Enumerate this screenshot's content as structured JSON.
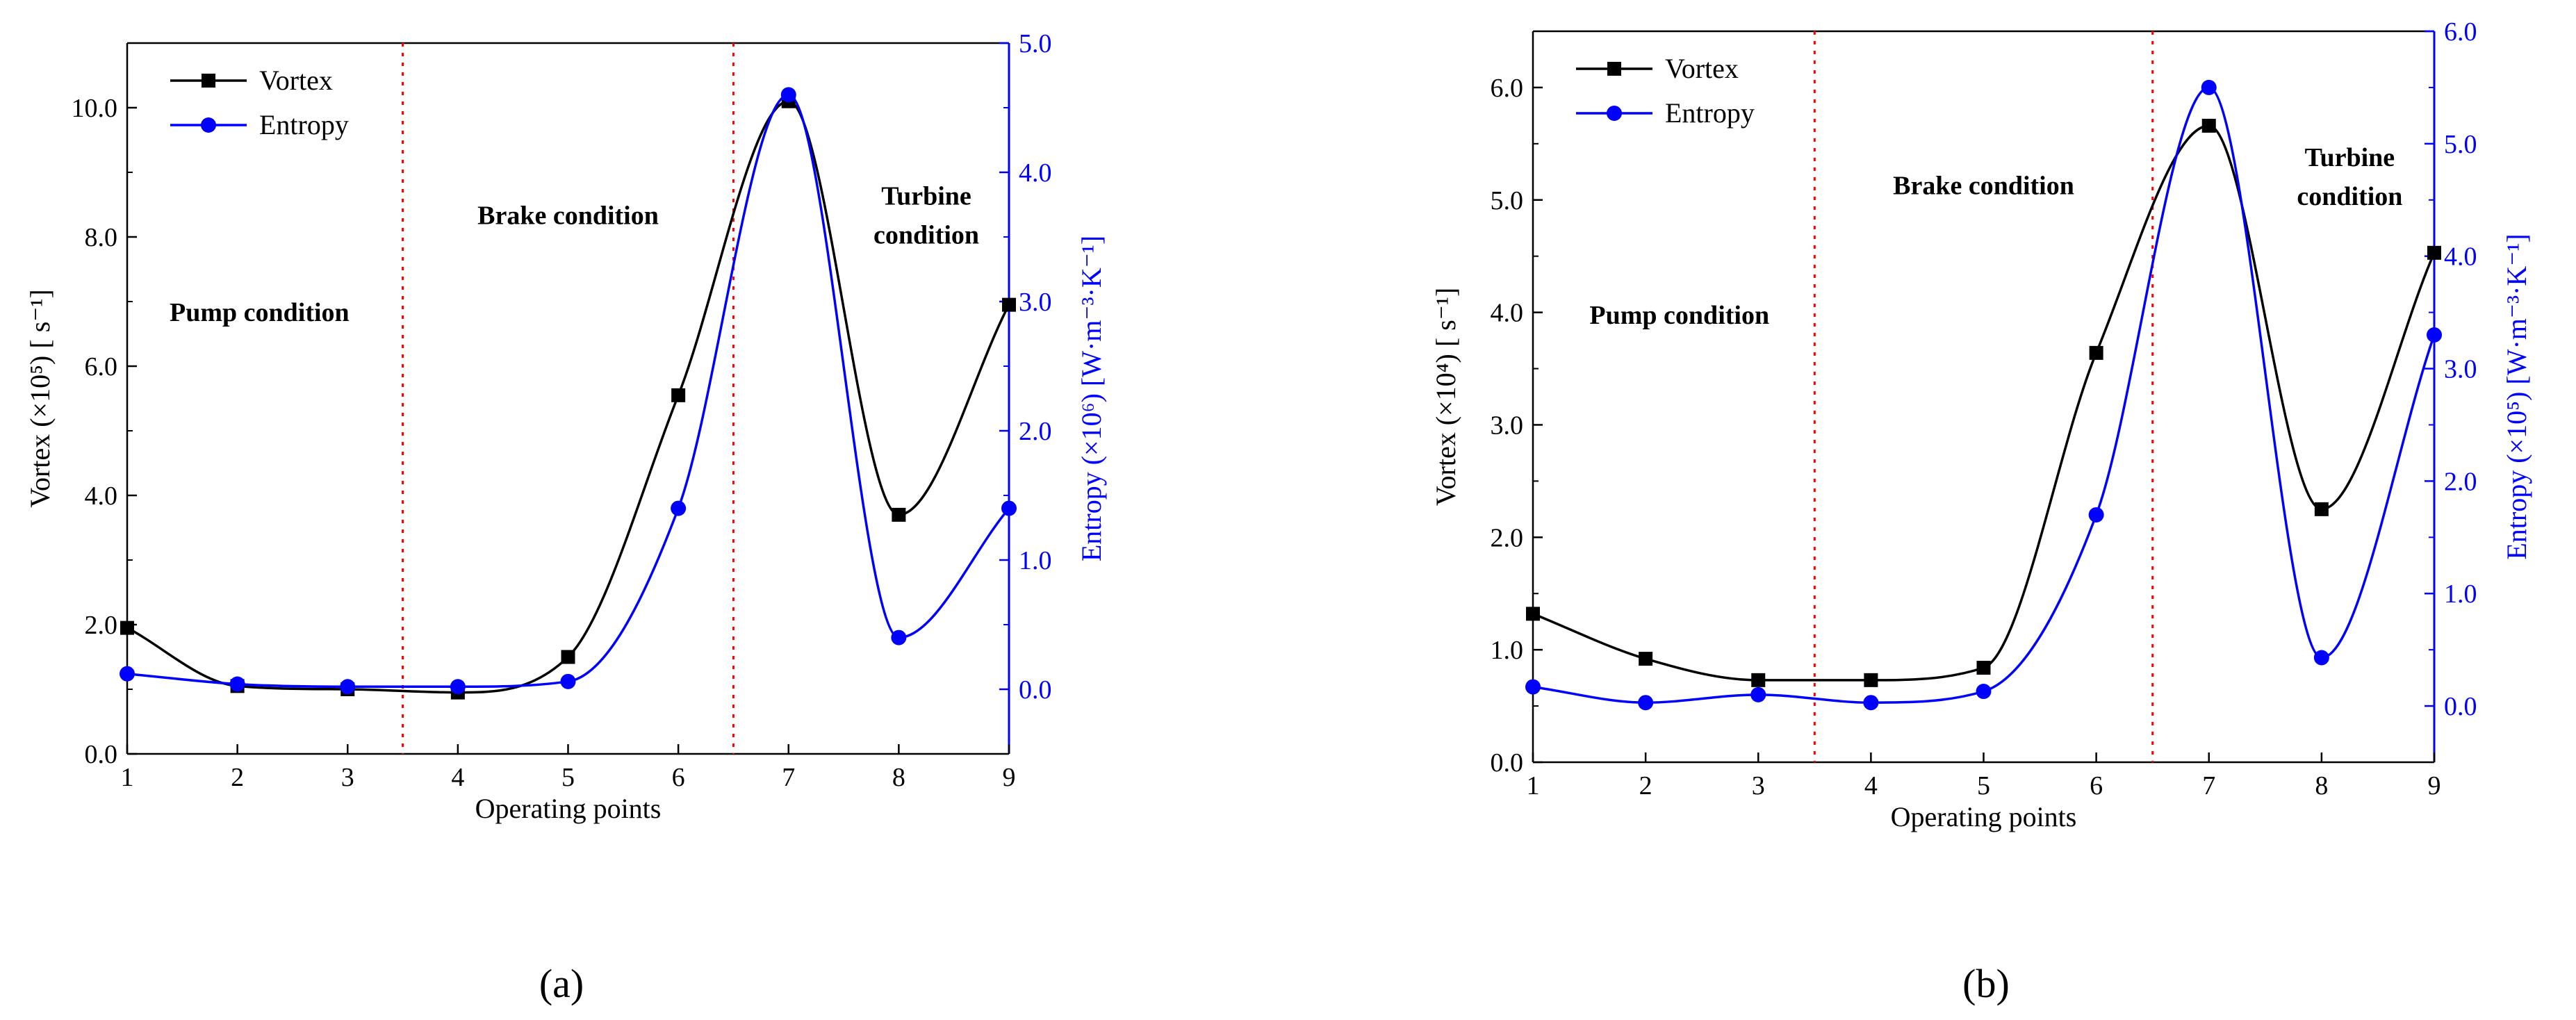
{
  "colors": {
    "vortex": "#000000",
    "entropy": "#0000ff",
    "divider": "#ff0000",
    "axis_black": "#000000",
    "axis_blue": "#0000ff"
  },
  "chart_data": [
    {
      "type": "line",
      "panel_label": "(a)",
      "xlabel": "Operating points",
      "ylabel_left": "Vortex (×10⁵) [ s⁻¹]",
      "ylabel_right": "Entropy (×10⁶) [W·m⁻³·K⁻¹]",
      "x": [
        1,
        2,
        3,
        4,
        5,
        6,
        7,
        8,
        9
      ],
      "xlim": [
        1,
        9
      ],
      "xticks": [
        "1",
        "2",
        "3",
        "4",
        "5",
        "6",
        "7",
        "8",
        "9"
      ],
      "ylim_left": [
        0,
        11.0
      ],
      "yticks_left": [
        "0.0",
        "2.0",
        "4.0",
        "6.0",
        "8.0",
        "10.0"
      ],
      "ylim_right": [
        -0.5,
        5.0
      ],
      "yticks_right": [
        "0.0",
        "1.0",
        "2.0",
        "3.0",
        "4.0",
        "5.0"
      ],
      "legend": [
        "Vortex",
        "Entropy"
      ],
      "legend_position": "top-left",
      "series": [
        {
          "name": "Vortex",
          "axis": "left",
          "marker": "square",
          "values": [
            1.95,
            1.05,
            1.0,
            0.95,
            1.5,
            5.55,
            10.1,
            3.7,
            6.95
          ]
        },
        {
          "name": "Entropy",
          "axis": "right",
          "marker": "circle",
          "values": [
            0.12,
            0.04,
            0.02,
            0.02,
            0.06,
            1.4,
            4.6,
            0.4,
            1.4
          ]
        }
      ],
      "dividers": [
        3.5,
        6.5
      ],
      "annotations": [
        {
          "text": "Pump condition",
          "x": 2.2,
          "y_left": 6.7
        },
        {
          "text": "Brake condition",
          "x": 5.0,
          "y_left": 8.2
        },
        {
          "text": "Turbine condition",
          "x": 8.25,
          "y_left": 8.5
        }
      ]
    },
    {
      "type": "line",
      "panel_label": "(b)",
      "xlabel": "Operating  points",
      "ylabel_left": "Vortex (×10⁴) [ s⁻¹]",
      "ylabel_right": "Entropy (×10⁵) [W·m⁻³·K⁻¹]",
      "x": [
        1,
        2,
        3,
        4,
        5,
        6,
        7,
        8,
        9
      ],
      "xlim": [
        1,
        9
      ],
      "xticks": [
        "1",
        "2",
        "3",
        "4",
        "5",
        "6",
        "7",
        "8",
        "9"
      ],
      "ylim_left": [
        0,
        6.5
      ],
      "yticks_left": [
        "0.0",
        "1.0",
        "2.0",
        "3.0",
        "4.0",
        "5.0",
        "6.0"
      ],
      "ylim_right": [
        -0.5,
        6.0
      ],
      "yticks_right": [
        "0.0",
        "1.0",
        "2.0",
        "3.0",
        "4.0",
        "5.0",
        "6.0"
      ],
      "legend": [
        "Vortex",
        "Entropy"
      ],
      "legend_position": "top-left",
      "series": [
        {
          "name": "Vortex",
          "axis": "left",
          "marker": "square",
          "values": [
            1.32,
            0.92,
            0.73,
            0.73,
            0.84,
            3.64,
            5.66,
            2.25,
            4.53
          ]
        },
        {
          "name": "Entropy",
          "axis": "right",
          "marker": "circle",
          "values": [
            0.17,
            0.03,
            0.1,
            0.03,
            0.13,
            1.7,
            5.5,
            0.43,
            3.3
          ]
        }
      ],
      "dividers": [
        3.5,
        6.5
      ],
      "annotations": [
        {
          "text": "Pump condition",
          "x": 2.3,
          "y_left": 3.9
        },
        {
          "text": "Brake condition",
          "x": 5.0,
          "y_left": 5.05
        },
        {
          "text": "Turbine condition",
          "x": 8.25,
          "y_left": 5.3
        }
      ]
    }
  ]
}
